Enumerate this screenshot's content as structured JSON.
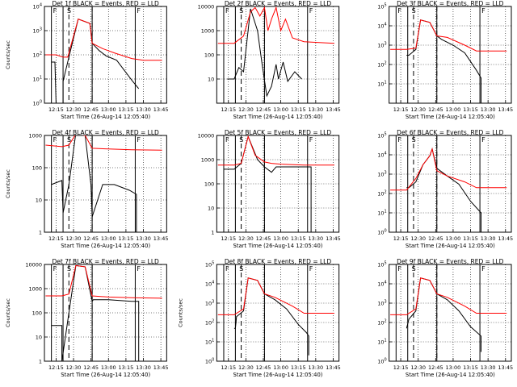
{
  "chart_data": [
    {
      "type": "line",
      "title": "Det 1f BLACK = Events, RED = LLD",
      "xlabel": "Start Time (26-Aug-14 12:05:40)",
      "ylabel": "Counts/sec",
      "y_scale": "log",
      "xlim": [
        "12:05",
        "13:50"
      ],
      "ylim": [
        1,
        10000
      ],
      "x_ticks": [
        "12:15",
        "12:30",
        "12:45",
        "13:00",
        "13:15",
        "13:30",
        "13:45"
      ],
      "y_ticks": [
        "10^0",
        "10^1",
        "10^2",
        "10^3",
        "10^4"
      ],
      "region_labels": [
        "F",
        "S",
        "F"
      ],
      "series": [
        {
          "color": "#000000",
          "x": [
            "12:11",
            "12:14",
            "12:15",
            "12:21",
            "12:21",
            "12:25",
            "12:34",
            "12:44",
            "12:46",
            "12:52",
            "12:58",
            "13:07",
            "13:20",
            "13:26"
          ],
          "y": [
            50,
            50,
            1,
            1,
            8,
            50,
            3000,
            2000,
            300,
            150,
            90,
            60,
            9,
            4
          ]
        },
        {
          "color": "#ff0000",
          "x": [
            "12:06",
            "12:15",
            "12:21",
            "12:25",
            "12:34",
            "12:44",
            "12:46",
            "12:55",
            "13:05",
            "13:20",
            "13:30",
            "13:46"
          ],
          "y": [
            100,
            100,
            80,
            80,
            3000,
            2000,
            300,
            180,
            120,
            70,
            60,
            60
          ]
        }
      ]
    },
    {
      "type": "line",
      "title": "Det 2f BLACK = Events, RED = LLD",
      "xlabel": "Start Time (26-Aug-14 12:05:40)",
      "ylabel": "",
      "y_scale": "log",
      "xlim": [
        "12:05",
        "13:50"
      ],
      "ylim": [
        1,
        10000
      ],
      "x_ticks": [
        "12:15",
        "12:30",
        "12:45",
        "13:00",
        "13:15",
        "13:30",
        "13:45"
      ],
      "y_ticks": [
        "10",
        "100",
        "1000",
        "10000"
      ],
      "region_labels": [
        "F",
        "S",
        "F"
      ],
      "series": [
        {
          "color": "#000000",
          "x": [
            "12:14",
            "12:20",
            "12:24",
            "12:28",
            "12:34",
            "12:40",
            "12:44",
            "12:48",
            "12:52",
            "12:56",
            "12:58",
            "13:02",
            "13:06",
            "13:12",
            "13:18"
          ],
          "y": [
            10,
            10,
            30,
            20,
            8000,
            1000,
            40,
            2,
            5,
            40,
            10,
            50,
            8,
            20,
            10
          ]
        },
        {
          "color": "#ff0000",
          "x": [
            "12:06",
            "12:20",
            "12:28",
            "12:34",
            "12:38",
            "12:42",
            "12:46",
            "12:49",
            "12:52",
            "12:56",
            "13:00",
            "13:04",
            "13:10",
            "13:20",
            "13:46"
          ],
          "y": [
            300,
            300,
            600,
            6000,
            9000,
            4000,
            9000,
            1000,
            3000,
            9000,
            1000,
            3000,
            500,
            350,
            300
          ]
        }
      ]
    },
    {
      "type": "line",
      "title": "Det 3f BLACK = Events, RED = LLD",
      "xlabel": "Start Time (26-Aug-14 12:05:40)",
      "ylabel": "",
      "y_scale": "log",
      "xlim": [
        "12:05",
        "13:50"
      ],
      "ylim": [
        1,
        100000
      ],
      "x_ticks": [
        "12:15",
        "12:30",
        "12:45",
        "13:00",
        "13:15",
        "13:30",
        "13:45"
      ],
      "y_ticks": [
        "10^1",
        "10^2",
        "10^3",
        "10^4",
        "10^5"
      ],
      "region_labels": [
        "F",
        "S",
        "F"
      ],
      "series": [
        {
          "color": "#000000",
          "x": [
            "12:20",
            "12:22",
            "12:28",
            "12:32",
            "12:40",
            "12:46",
            "12:50",
            "13:00",
            "13:10",
            "13:20",
            "13:24",
            "13:24"
          ],
          "y": [
            300,
            300,
            600,
            20000,
            15000,
            3000,
            2000,
            1000,
            400,
            50,
            20,
            1
          ]
        },
        {
          "color": "#ff0000",
          "x": [
            "12:06",
            "12:20",
            "12:28",
            "12:32",
            "12:40",
            "12:46",
            "12:55",
            "13:10",
            "13:20",
            "13:46"
          ],
          "y": [
            600,
            600,
            700,
            20000,
            15000,
            3000,
            2500,
            1000,
            500,
            500
          ]
        }
      ]
    },
    {
      "type": "line",
      "title": "Det 4f BLACK = Events, RED = LLD",
      "xlabel": "Start Time (26-Aug-14 12:05:40)",
      "ylabel": "Counts/sec",
      "y_scale": "log",
      "xlim": [
        "12:05",
        "13:50"
      ],
      "ylim": [
        1,
        1000
      ],
      "x_ticks": [
        "12:15",
        "12:30",
        "12:45",
        "13:00",
        "13:15",
        "13:30",
        "13:45"
      ],
      "y_ticks": [
        "1",
        "10",
        "100",
        "1000"
      ],
      "region_labels": [
        "F",
        "S",
        "F"
      ],
      "series": [
        {
          "color": "#000000",
          "x": [
            "12:11",
            "12:20",
            "12:21",
            "12:26",
            "12:32",
            "12:40",
            "12:45",
            "12:46",
            "12:55",
            "13:05",
            "13:18",
            "13:24",
            "13:24"
          ],
          "y": [
            30,
            40,
            4,
            30,
            1200,
            1000,
            30,
            3,
            30,
            30,
            20,
            15,
            1
          ]
        },
        {
          "color": "#ff0000",
          "x": [
            "12:06",
            "12:20",
            "12:26",
            "12:32",
            "12:40",
            "12:46",
            "13:00",
            "13:20",
            "13:46"
          ],
          "y": [
            500,
            450,
            500,
            1100,
            1000,
            400,
            380,
            360,
            350
          ]
        }
      ]
    },
    {
      "type": "line",
      "title": "Det 5f BLACK = Events, RED = LLD",
      "xlabel": "Start Time (26-Aug-14 12:05:40)",
      "ylabel": "",
      "y_scale": "log",
      "xlim": [
        "12:05",
        "13:50"
      ],
      "ylim": [
        1,
        10000
      ],
      "x_ticks": [
        "12:15",
        "12:30",
        "12:45",
        "13:00",
        "13:15",
        "13:30",
        "13:45"
      ],
      "y_ticks": [
        "1",
        "10",
        "100",
        "1000",
        "10000"
      ],
      "region_labels": [
        "F",
        "S",
        "F"
      ],
      "series": [
        {
          "color": "#000000",
          "x": [
            "12:11",
            "12:20",
            "12:26",
            "12:32",
            "12:40",
            "12:46",
            "12:52",
            "12:56",
            "13:05",
            "13:20",
            "13:26",
            "13:26"
          ],
          "y": [
            400,
            400,
            700,
            9000,
            1000,
            500,
            300,
            500,
            500,
            500,
            500,
            1
          ]
        },
        {
          "color": "#ff0000",
          "x": [
            "12:06",
            "12:20",
            "12:26",
            "12:32",
            "12:38",
            "12:46",
            "12:52",
            "13:00",
            "13:20",
            "13:46"
          ],
          "y": [
            600,
            600,
            700,
            9000,
            1500,
            800,
            700,
            650,
            600,
            600
          ]
        }
      ]
    },
    {
      "type": "line",
      "title": "Det 6f BLACK = Events, RED = LLD",
      "xlabel": "Start Time (26-Aug-14 12:05:40)",
      "ylabel": "",
      "y_scale": "log",
      "xlim": [
        "12:05",
        "13:50"
      ],
      "ylim": [
        1,
        100000
      ],
      "x_ticks": [
        "12:15",
        "12:30",
        "12:45",
        "13:00",
        "13:15",
        "13:30",
        "13:45"
      ],
      "y_ticks": [
        "10^0",
        "10^1",
        "10^2",
        "10^3",
        "10^4",
        "10^5"
      ],
      "region_labels": [
        "F",
        "S",
        "F"
      ],
      "series": [
        {
          "color": "#000000",
          "x": [
            "12:20",
            "12:22",
            "12:28",
            "12:34",
            "12:40",
            "12:42",
            "12:46",
            "12:55",
            "13:05",
            "13:15",
            "13:24",
            "13:24"
          ],
          "y": [
            200,
            200,
            400,
            3000,
            9000,
            20000,
            2000,
            800,
            300,
            40,
            10,
            1
          ]
        },
        {
          "color": "#ff0000",
          "x": [
            "12:06",
            "12:20",
            "12:28",
            "12:34",
            "12:40",
            "12:42",
            "12:46",
            "12:55",
            "13:10",
            "13:20",
            "13:46"
          ],
          "y": [
            150,
            150,
            600,
            3000,
            9000,
            20000,
            1500,
            800,
            400,
            200,
            200
          ]
        }
      ]
    },
    {
      "type": "line",
      "title": "Det 7f BLACK = Events, RED = LLD",
      "xlabel": "Start Time (26-Aug-14 12:05:40)",
      "ylabel": "Counts/sec",
      "y_scale": "log",
      "xlim": [
        "12:05",
        "13:50"
      ],
      "ylim": [
        1,
        10000
      ],
      "x_ticks": [
        "12:15",
        "12:30",
        "12:45",
        "13:00",
        "13:15",
        "13:30",
        "13:45"
      ],
      "y_ticks": [
        "1",
        "10",
        "100",
        "1000",
        "10000"
      ],
      "region_labels": [
        "F",
        "S",
        "F"
      ],
      "series": [
        {
          "color": "#000000",
          "x": [
            "12:11",
            "12:20",
            "12:20",
            "12:26",
            "12:32",
            "12:40",
            "12:46",
            "12:47",
            "13:00",
            "13:20",
            "13:26",
            "13:26"
          ],
          "y": [
            30,
            30,
            1,
            100,
            9000,
            8000,
            300,
            350,
            350,
            300,
            300,
            1
          ]
        },
        {
          "color": "#ff0000",
          "x": [
            "12:06",
            "12:20",
            "12:26",
            "12:32",
            "12:40",
            "12:46",
            "13:00",
            "13:20",
            "13:46"
          ],
          "y": [
            500,
            500,
            600,
            9000,
            8000,
            500,
            450,
            420,
            400
          ]
        }
      ]
    },
    {
      "type": "line",
      "title": "Det 8f BLACK = Events, RED = LLD",
      "xlabel": "Start Time (26-Aug-14 12:05:40)",
      "ylabel": "Counts/sec",
      "y_scale": "log",
      "xlim": [
        "12:05",
        "13:50"
      ],
      "ylim": [
        1,
        100000
      ],
      "x_ticks": [
        "12:15",
        "12:30",
        "12:45",
        "13:00",
        "13:15",
        "13:30",
        "13:45"
      ],
      "y_ticks": [
        "10^0",
        "10^1",
        "10^2",
        "10^3",
        "10^4",
        "10^5"
      ],
      "region_labels": [
        "F",
        "S",
        "F"
      ],
      "series": [
        {
          "color": "#000000",
          "x": [
            "12:20",
            "12:21",
            "12:22",
            "12:28",
            "12:32",
            "12:40",
            "12:46",
            "12:55",
            "13:05",
            "13:15",
            "13:22",
            "13:24",
            "13:24"
          ],
          "y": [
            50,
            50,
            200,
            400,
            20000,
            15000,
            3000,
            1500,
            500,
            80,
            30,
            20,
            2
          ]
        },
        {
          "color": "#ff0000",
          "x": [
            "12:06",
            "12:20",
            "12:28",
            "12:32",
            "12:40",
            "12:46",
            "12:55",
            "13:10",
            "13:20",
            "13:46"
          ],
          "y": [
            250,
            250,
            500,
            20000,
            15000,
            3000,
            2000,
            700,
            300,
            300
          ]
        }
      ]
    },
    {
      "type": "line",
      "title": "Det 9f BLACK = Events, RED = LLD",
      "xlabel": "Start Time (26-Aug-14 12:05:40)",
      "ylabel": "",
      "y_scale": "log",
      "xlim": [
        "12:05",
        "13:50"
      ],
      "ylim": [
        1,
        100000
      ],
      "x_ticks": [
        "12:15",
        "12:30",
        "12:45",
        "13:00",
        "13:15",
        "13:30",
        "13:45"
      ],
      "y_ticks": [
        "10^0",
        "10^1",
        "10^2",
        "10^3",
        "10^4",
        "10^5"
      ],
      "region_labels": [
        "F",
        "S",
        "F"
      ],
      "series": [
        {
          "color": "#000000",
          "x": [
            "12:20",
            "12:22",
            "12:28",
            "12:32",
            "12:40",
            "12:46",
            "12:55",
            "13:05",
            "13:15",
            "13:24",
            "13:24"
          ],
          "y": [
            50,
            150,
            400,
            20000,
            15000,
            3000,
            1500,
            400,
            60,
            20,
            3
          ]
        },
        {
          "color": "#ff0000",
          "x": [
            "12:06",
            "12:20",
            "12:28",
            "12:32",
            "12:40",
            "12:46",
            "12:55",
            "13:10",
            "13:20",
            "13:46"
          ],
          "y": [
            250,
            250,
            500,
            20000,
            15000,
            3000,
            2000,
            700,
            300,
            300
          ]
        }
      ]
    }
  ]
}
